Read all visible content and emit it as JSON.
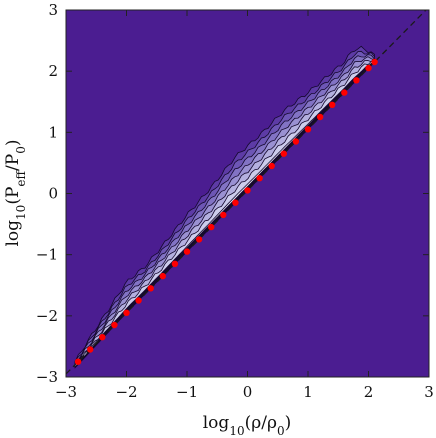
{
  "chart_data": {
    "type": "heatmap",
    "title": "",
    "xlabel": "log10(ρ/ρ0)",
    "ylabel": "log10(Peff/P0)",
    "xlim": [
      -3,
      3
    ],
    "ylim": [
      -3,
      3
    ],
    "x_ticks": [
      -3,
      -2,
      -1,
      0,
      1,
      2,
      3
    ],
    "y_ticks": [
      -3,
      -2,
      -1,
      0,
      1,
      2,
      3
    ],
    "x_tick_labels": [
      "−3",
      "−2",
      "−1",
      "0",
      "1",
      "2",
      "3"
    ],
    "y_tick_labels": [
      "−3",
      "−2",
      "−1",
      "0",
      "1",
      "2",
      "3"
    ],
    "background_color": "#4b1d91",
    "contour_levels": 7,
    "contour_colors": [
      "#5d3ba6",
      "#6d56b5",
      "#8273c4",
      "#9a91d2",
      "#b4b0df",
      "#cdcdec",
      "#e4e6f6"
    ],
    "distribution_upper_edge": {
      "x": [
        -2.85,
        -2.6,
        -2.3,
        -2.0,
        -1.7,
        -1.4,
        -1.0,
        -0.6,
        -0.2,
        0.2,
        0.6,
        1.0,
        1.3,
        1.6,
        1.75,
        1.9,
        2.05,
        2.1
      ],
      "y": [
        -2.75,
        -2.35,
        -1.9,
        -1.45,
        -1.2,
        -0.85,
        -0.35,
        0.1,
        0.6,
        0.95,
        1.35,
        1.65,
        1.9,
        2.15,
        2.35,
        2.38,
        2.3,
        2.25
      ]
    },
    "distribution_lower_edge": {
      "x": [
        -2.85,
        -2.0,
        -1.0,
        0.0,
        1.0,
        1.5,
        2.1
      ],
      "y": [
        -2.85,
        -1.95,
        -0.95,
        0.05,
        1.05,
        1.55,
        2.15
      ]
    },
    "series": [
      {
        "type": "scatter",
        "color": "#ff0000",
        "x": [
          -2.8,
          -2.6,
          -2.4,
          -2.2,
          -2.0,
          -1.8,
          -1.6,
          -1.4,
          -1.2,
          -1.0,
          -0.8,
          -0.6,
          -0.4,
          -0.2,
          0.0,
          0.2,
          0.4,
          0.6,
          0.8,
          1.0,
          1.2,
          1.4,
          1.6,
          1.8,
          2.0,
          2.1
        ],
        "y": [
          -2.75,
          -2.55,
          -2.35,
          -2.15,
          -1.95,
          -1.75,
          -1.55,
          -1.35,
          -1.15,
          -0.95,
          -0.75,
          -0.55,
          -0.35,
          -0.15,
          0.05,
          0.25,
          0.45,
          0.65,
          0.85,
          1.05,
          1.25,
          1.45,
          1.65,
          1.85,
          2.05,
          2.15
        ]
      },
      {
        "type": "line",
        "style": "dashed",
        "color": "#1a1a1a",
        "x": [
          -3,
          3
        ],
        "y": [
          -2.95,
          3.05
        ]
      }
    ],
    "grid": false,
    "legend": "none"
  }
}
